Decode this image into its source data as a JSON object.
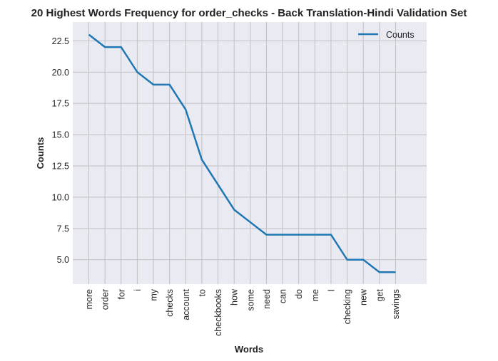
{
  "chart_data": {
    "type": "line",
    "title": "20 Highest Words Frequency for order_checks - Back Translation-Hindi Validation Set",
    "xlabel": "Words",
    "ylabel": "Counts",
    "categories": [
      "more",
      "order",
      "for",
      "i",
      "my",
      "checks",
      "account",
      "to",
      "checkbooks",
      "how",
      "some",
      "need",
      "can",
      "do",
      "me",
      "I",
      "checking",
      "new",
      "get",
      "savings"
    ],
    "series": [
      {
        "name": "Counts",
        "values": [
          23,
          22,
          22,
          20,
          19,
          19,
          17,
          13,
          11,
          9,
          8,
          7,
          7,
          7,
          7,
          7,
          5,
          5,
          4,
          4
        ],
        "color": "#1f77b4"
      }
    ],
    "ylim": [
      3.05,
      24.0
    ],
    "yticks": [
      5.0,
      7.5,
      10.0,
      12.5,
      15.0,
      17.5,
      20.0,
      22.5
    ],
    "ytick_labels": [
      "5.0",
      "7.5",
      "10.0",
      "12.5",
      "15.0",
      "17.5",
      "20.0",
      "22.5"
    ],
    "grid": true,
    "legend_position": "top-right",
    "background_color": "#eaeaf2",
    "grid_color": "#c0c0c0"
  }
}
